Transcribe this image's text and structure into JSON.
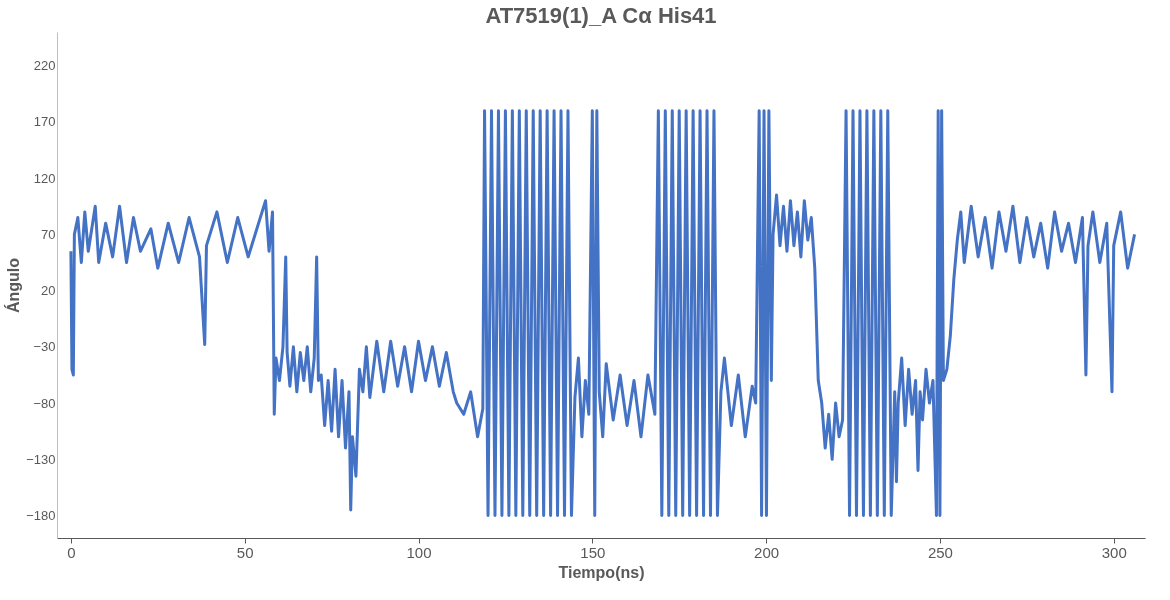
{
  "chart_data": {
    "type": "line",
    "title": "AT7519(1)_A Cα His41",
    "xlabel": "Tiempo(ns)",
    "ylabel": "Ángulo",
    "xlim": [
      -4,
      309
    ],
    "xticks": [
      0,
      50,
      100,
      150,
      200,
      250,
      300
    ],
    "ylim": [
      -200,
      250
    ],
    "yticks": [
      -180,
      -130,
      -80,
      -30,
      20,
      70,
      120,
      170,
      220
    ],
    "grid": false,
    "marker": "none",
    "line_style": "solid",
    "x": [
      0,
      0.3,
      0.7,
      1,
      2,
      3,
      4,
      5,
      7,
      8,
      10,
      12,
      14,
      16,
      18,
      20,
      23,
      25,
      28,
      31,
      34,
      37,
      38.5,
      39,
      42,
      45,
      48,
      51,
      54,
      56,
      57,
      58,
      58.5,
      59,
      60,
      61,
      61.8,
      62.2,
      63,
      64,
      65,
      66,
      67,
      68,
      69,
      70,
      70.7,
      71.2,
      72,
      73,
      74,
      75,
      76,
      77,
      78,
      79,
      80,
      80.5,
      81,
      82,
      83,
      84,
      85,
      86,
      88,
      90,
      92,
      94,
      96,
      98,
      100,
      102,
      104,
      106,
      108,
      110,
      111,
      113,
      115,
      117,
      118.5,
      119,
      120,
      121,
      122,
      123,
      124,
      125,
      126,
      127,
      128,
      129,
      130,
      131,
      132,
      133,
      134,
      135,
      136,
      137,
      138,
      139,
      140,
      141,
      142,
      143,
      144,
      145,
      146,
      147,
      148,
      149,
      150,
      150.7,
      151.3,
      152,
      153,
      154,
      156,
      158,
      160,
      162,
      164,
      166,
      168,
      169,
      170,
      171,
      172,
      173,
      174,
      175,
      176,
      177,
      178,
      179,
      180,
      181,
      182,
      183,
      184,
      185,
      186,
      187,
      188,
      190,
      192,
      194,
      196,
      197,
      198,
      198.7,
      199.4,
      200.1,
      200.8,
      201.5,
      202,
      203,
      204,
      205,
      206,
      207,
      208,
      209,
      210,
      211,
      212,
      213,
      214,
      215,
      216,
      217,
      218,
      219,
      220,
      221,
      222,
      223,
      224,
      225,
      226,
      227,
      228,
      229,
      230,
      231,
      232,
      233,
      234,
      235,
      236,
      237,
      237.5,
      238,
      239,
      240,
      241,
      242,
      243,
      243.7,
      244.3,
      245,
      246,
      247,
      248,
      249,
      249.5,
      250,
      250.5,
      251,
      252,
      253,
      254,
      255,
      256,
      257,
      259,
      261,
      263,
      265,
      267,
      269,
      271,
      273,
      275,
      277,
      279,
      281,
      283,
      285,
      287,
      289,
      291,
      292,
      292.6,
      294,
      296,
      298,
      299.5,
      300,
      302,
      304,
      306
    ],
    "series": [
      {
        "color": "#4472c4",
        "values": [
          55,
          -50,
          -55,
          70,
          85,
          45,
          90,
          55,
          95,
          45,
          80,
          50,
          95,
          45,
          85,
          55,
          75,
          40,
          80,
          45,
          85,
          50,
          -28,
          60,
          90,
          45,
          85,
          50,
          80,
          100,
          55,
          90,
          -90,
          -40,
          -60,
          -30,
          50,
          -35,
          -65,
          -30,
          -70,
          -35,
          -60,
          -30,
          -70,
          -40,
          50,
          -60,
          -55,
          -100,
          -60,
          -105,
          -50,
          -110,
          -60,
          -120,
          -70,
          -175,
          -110,
          -145,
          -50,
          -70,
          -30,
          -75,
          -25,
          -70,
          -25,
          -65,
          -30,
          -70,
          -25,
          -60,
          -30,
          -65,
          -35,
          -70,
          -80,
          -90,
          -70,
          -110,
          -85,
          180,
          -180,
          180,
          -180,
          180,
          -180,
          180,
          -180,
          180,
          -180,
          180,
          -180,
          180,
          -180,
          180,
          -180,
          180,
          -180,
          180,
          -180,
          180,
          -180,
          180,
          -180,
          180,
          -180,
          -75,
          -40,
          -110,
          -60,
          -90,
          180,
          -180,
          180,
          -70,
          -110,
          -45,
          -95,
          -55,
          -100,
          -60,
          -110,
          -55,
          -90,
          180,
          -180,
          180,
          -180,
          180,
          -180,
          180,
          -180,
          180,
          -180,
          180,
          -180,
          180,
          -180,
          180,
          -180,
          180,
          -180,
          -70,
          -40,
          -100,
          -55,
          -110,
          -65,
          -80,
          180,
          -180,
          180,
          -180,
          180,
          -60,
          70,
          105,
          60,
          95,
          55,
          100,
          60,
          90,
          50,
          100,
          65,
          85,
          40,
          -60,
          -80,
          -120,
          -90,
          -130,
          -80,
          -110,
          -95,
          180,
          -180,
          180,
          -180,
          180,
          -180,
          180,
          -180,
          180,
          -180,
          180,
          -180,
          180,
          -180,
          -70,
          -150,
          -80,
          -40,
          -100,
          -50,
          -90,
          -60,
          -140,
          -70,
          -95,
          -50,
          -80,
          -60,
          -180,
          180,
          -180,
          180,
          -60,
          -50,
          -20,
          30,
          65,
          90,
          45,
          95,
          50,
          85,
          40,
          90,
          55,
          95,
          45,
          85,
          50,
          80,
          40,
          90,
          55,
          80,
          45,
          85,
          -55,
          60,
          90,
          45,
          80,
          -70,
          60,
          90,
          40,
          70
        ]
      }
    ]
  }
}
